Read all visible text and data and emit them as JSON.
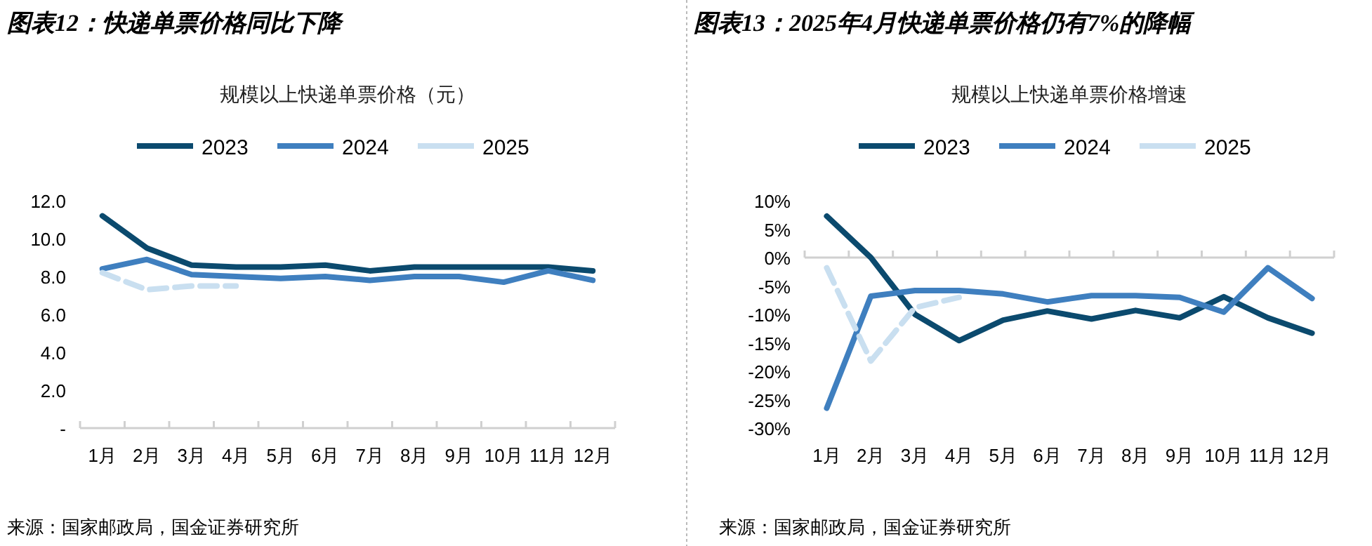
{
  "chart_data": [
    {
      "type": "line",
      "title": "图表12：快递单票价格同比下降",
      "subtitle": "规模以上快递单票价格（元）",
      "categories": [
        "1月",
        "2月",
        "3月",
        "4月",
        "5月",
        "6月",
        "7月",
        "8月",
        "9月",
        "10月",
        "11月",
        "12月"
      ],
      "series": [
        {
          "name": "2023",
          "color": "#0b4a6e",
          "values": [
            11.2,
            9.5,
            8.6,
            8.5,
            8.5,
            8.6,
            8.3,
            8.5,
            8.5,
            8.5,
            8.5,
            8.3
          ]
        },
        {
          "name": "2024",
          "color": "#3f7fbf",
          "values": [
            8.4,
            8.9,
            8.1,
            8.0,
            7.9,
            8.0,
            7.8,
            8.0,
            8.0,
            7.7,
            8.3,
            7.8
          ]
        },
        {
          "name": "2025",
          "color": "#c9dff0",
          "line_style": "dashed",
          "values": [
            8.2,
            7.3,
            7.5,
            7.5,
            null,
            null,
            null,
            null,
            null,
            null,
            null,
            null
          ]
        }
      ],
      "ylim": [
        0,
        12
      ],
      "yticks": [
        {
          "value": 0,
          "label": "-"
        },
        {
          "value": 2,
          "label": "2.0"
        },
        {
          "value": 4,
          "label": "4.0"
        },
        {
          "value": 6,
          "label": "6.0"
        },
        {
          "value": 8,
          "label": "8.0"
        },
        {
          "value": 10,
          "label": "10.0"
        },
        {
          "value": 12,
          "label": "12.0"
        }
      ],
      "legend": "top",
      "annotations": [
        "来源：国家邮政局，国金证券研究所"
      ]
    },
    {
      "type": "line",
      "title": "图表13：2025年4月快递单票价格仍有7%的降幅",
      "subtitle": "规模以上快递单票价格增速",
      "categories": [
        "1月",
        "2月",
        "3月",
        "4月",
        "5月",
        "6月",
        "7月",
        "8月",
        "9月",
        "10月",
        "11月",
        "12月"
      ],
      "series": [
        {
          "name": "2023",
          "color": "#0b4a6e",
          "values": [
            7.3,
            0,
            -10,
            -14.6,
            -11,
            -9.4,
            -10.8,
            -9.3,
            -10.6,
            -6.9,
            -10.6,
            -13.3
          ]
        },
        {
          "name": "2024",
          "color": "#3f7fbf",
          "values": [
            -26.5,
            -6.8,
            -5.8,
            -5.8,
            -6.4,
            -7.8,
            -6.7,
            -6.7,
            -7,
            -9.6,
            -1.8,
            -7.2
          ]
        },
        {
          "name": "2025",
          "color": "#c9dff0",
          "line_style": "dashed",
          "values": [
            -1.8,
            -18.2,
            -8.8,
            -7,
            null,
            null,
            null,
            null,
            null,
            null,
            null,
            null
          ]
        }
      ],
      "ylim": [
        -30,
        10
      ],
      "yticks": [
        {
          "value": -30,
          "label": "-30%"
        },
        {
          "value": -25,
          "label": "-25%"
        },
        {
          "value": -20,
          "label": "-20%"
        },
        {
          "value": -15,
          "label": "-15%"
        },
        {
          "value": -10,
          "label": "-10%"
        },
        {
          "value": -5,
          "label": "-5%"
        },
        {
          "value": 0,
          "label": "0%"
        },
        {
          "value": 5,
          "label": "5%"
        },
        {
          "value": 10,
          "label": "10%"
        }
      ],
      "legend": "top",
      "annotations": [
        "来源：国家邮政局，国金证券研究所"
      ]
    }
  ]
}
